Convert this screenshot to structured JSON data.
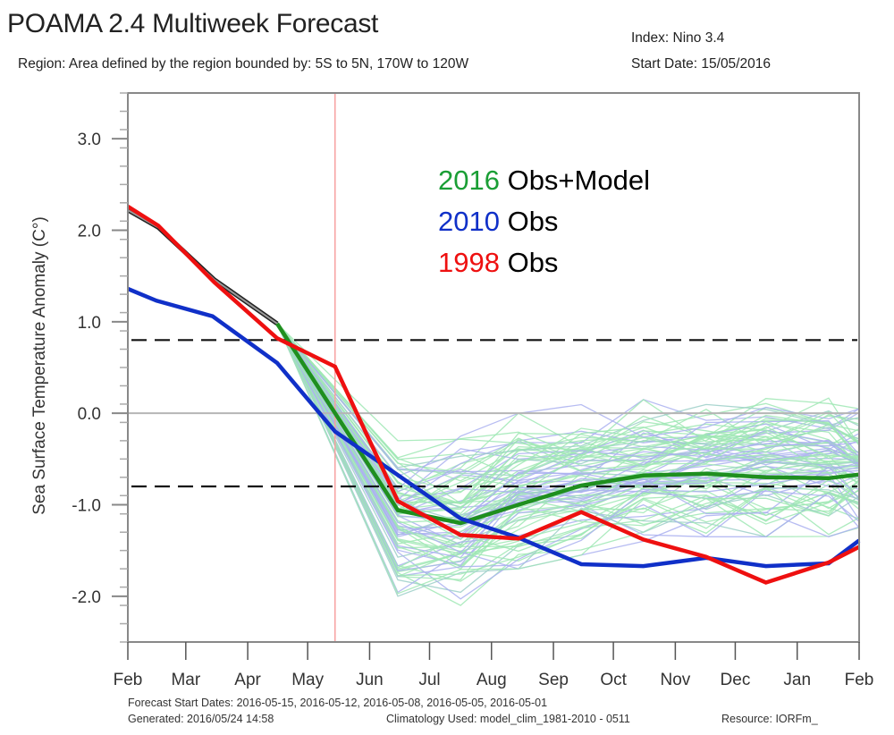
{
  "header": {
    "title": "POAMA 2.4 Multiweek Forecast",
    "region": "Region: Area defined by the region bounded by: 5S to 5N, 170W to 120W",
    "index": "Index: Nino 3.4",
    "start_date": "Start Date: 15/05/2016"
  },
  "footer": {
    "forecast_start_dates": "Forecast Start Dates: 2016-05-15, 2016-05-12, 2016-05-08, 2016-05-05, 2016-05-01",
    "generated": "Generated: 2016/05/24 14:58",
    "climatology": "Climatology Used: model_clim_1981-2010 - 0511",
    "resource": "Resource: IORFm_"
  },
  "chart_data": {
    "type": "line",
    "title": "POAMA 2.4 Multiweek Forecast",
    "xlabel": "",
    "ylabel": "Sea Surface Temperature Anomaly (C°)",
    "x_ticks": [
      "Feb",
      "Mar",
      "Apr",
      "May",
      "Jun",
      "Jul",
      "Aug",
      "Sep",
      "Oct",
      "Nov",
      "Dec",
      "Jan",
      "Feb"
    ],
    "x_units": "months since start of Feb 2016",
    "xlim": [
      0,
      12
    ],
    "ylim": [
      -2.5,
      3.5
    ],
    "y_ticks": [
      "3.0",
      "2.0",
      "1.0",
      "0.0",
      "-1.0",
      "-2.0"
    ],
    "y_tick_values": [
      3.0,
      2.0,
      1.0,
      0.0,
      -1.0,
      -2.0
    ],
    "grid": false,
    "zero_line": 0.0,
    "threshold_lines": [
      0.8,
      -0.8
    ],
    "forecast_start_marker_x": 3.4,
    "legend": {
      "placement": "upper-center",
      "entries": [
        {
          "year": "2016",
          "label": " Obs+Model",
          "color": "#1a9e35"
        },
        {
          "year": "2010",
          "label": " Obs",
          "color": "#1030c8"
        },
        {
          "year": "1998",
          "label": " Obs",
          "color": "#ee1010"
        }
      ]
    },
    "series": [
      {
        "name": "2016 Obs",
        "color": "#555555",
        "x": [
          0,
          0.5,
          1.42,
          2.45
        ],
        "values": [
          2.22,
          2.03,
          1.46,
          0.98
        ]
      },
      {
        "name": "2016 Model (ensemble mean)",
        "color": "#1f8f1f",
        "x": [
          2.45,
          4.43,
          5.46,
          6.41,
          7.44,
          8.46,
          9.49,
          10.47,
          11.5,
          12
        ],
        "values": [
          0.98,
          -1.06,
          -1.2,
          -1.0,
          -0.79,
          -0.68,
          -0.66,
          -0.7,
          -0.71,
          -0.67
        ]
      },
      {
        "name": "2010 Obs",
        "color": "#1030c8",
        "x": [
          0,
          0.47,
          1.39,
          2.45,
          3.4,
          5.46,
          6.41,
          7.44,
          8.46,
          9.49,
          10.47,
          11.5,
          12
        ],
        "values": [
          1.36,
          1.23,
          1.06,
          0.55,
          -0.2,
          -1.15,
          -1.36,
          -1.65,
          -1.67,
          -1.58,
          -1.67,
          -1.64,
          -1.39
        ]
      },
      {
        "name": "1998 Obs",
        "color": "#ee1010",
        "x": [
          0,
          0.5,
          1.42,
          2.45,
          3.4,
          4.43,
          5.46,
          6.41,
          7.44,
          8.46,
          9.49,
          10.47,
          11.5,
          12
        ],
        "values": [
          2.26,
          2.05,
          1.43,
          0.82,
          0.51,
          -0.96,
          -1.33,
          -1.37,
          -1.08,
          -1.38,
          -1.57,
          -1.85,
          -1.63,
          -1.46
        ]
      }
    ],
    "ensemble": {
      "description": "individual model ensemble members (light green / light blue / teal)",
      "member_count_approx": 90,
      "colors": [
        "#9fe8b4",
        "#aab0f0",
        "#9ccfc8"
      ],
      "x": [
        2.45,
        4.43,
        5.46,
        6.41,
        7.44,
        8.46,
        9.49,
        10.47,
        11.5,
        12
      ],
      "range_low": [
        0.98,
        -2.0,
        -2.1,
        -1.7,
        -1.55,
        -1.4,
        -1.35,
        -1.35,
        -1.35,
        -1.25
      ],
      "range_high": [
        0.98,
        -0.3,
        -0.25,
        0.0,
        0.1,
        0.15,
        0.2,
        0.25,
        0.3,
        0.05
      ]
    }
  }
}
